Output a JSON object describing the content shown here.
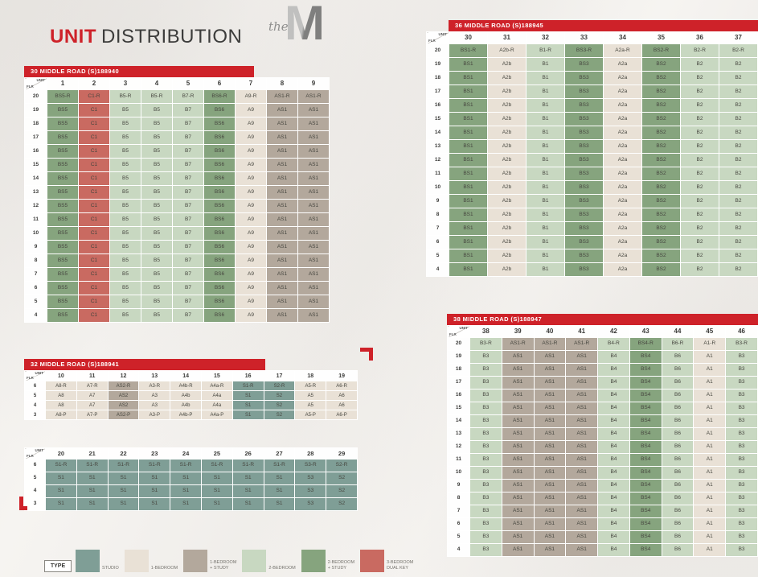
{
  "title": {
    "word1": "UNIT",
    "word2": "DISTRIBUTION"
  },
  "logo": {
    "the": "the",
    "m": "M"
  },
  "colors": {
    "header_red": "#ce2229",
    "studio": "#7f9e96",
    "one_bedroom": "#e9e1d6",
    "one_bedroom_study": "#b3a89c",
    "two_bedroom": "#c8d8c1",
    "two_bedroom_study": "#86a47e",
    "three_bedroom_dual_key": "#c96a61"
  },
  "legend": {
    "type_label": "TYPE",
    "items": [
      {
        "label": "STUDIO",
        "type": "studio",
        "color": "#7f9e96"
      },
      {
        "label": "1-BEDROOM",
        "type": "one_bedroom",
        "color": "#e9e1d6"
      },
      {
        "label": "1-BEDROOM\n+ STUDY",
        "type": "one_bedroom_study",
        "color": "#b3a89c"
      },
      {
        "label": "2-BEDROOM",
        "type": "two_bedroom",
        "color": "#c8d8c1"
      },
      {
        "label": "2-BEDROOM\n+ STUDY",
        "type": "two_bedroom_study",
        "color": "#86a47e"
      },
      {
        "label": "3-BEDROOM\nDUAL KEY",
        "type": "three_bedroom_dual_key",
        "color": "#c96a61"
      }
    ]
  },
  "tables": [
    {
      "title": "30 MIDDLE ROAD (S)188940",
      "corner": {
        "line1": "UNIT",
        "line2": "FLR"
      },
      "columns": [
        "1",
        "2",
        "3",
        "4",
        "5",
        "6",
        "7",
        "8",
        "9"
      ],
      "column_types": [
        "two_bedroom_study",
        "three_bedroom_dual_key",
        "two_bedroom",
        "two_bedroom",
        "two_bedroom",
        "two_bedroom_study",
        "one_bedroom",
        "one_bedroom_study",
        "one_bedroom_study"
      ],
      "rows": [
        {
          "floor": "20",
          "cells": [
            "BS5-R",
            "C1-R",
            "B5-R",
            "B5-R",
            "B7-R",
            "BS6-R",
            "A9-R",
            "AS1-R",
            "AS1-R"
          ]
        },
        {
          "floor": "19",
          "cells": [
            "BS5",
            "C1",
            "B5",
            "B5",
            "B7",
            "BS6",
            "A9",
            "AS1",
            "AS1"
          ]
        },
        {
          "floor": "18",
          "cells": [
            "BS5",
            "C1",
            "B5",
            "B5",
            "B7",
            "BS6",
            "A9",
            "AS1",
            "AS1"
          ]
        },
        {
          "floor": "17",
          "cells": [
            "BS5",
            "C1",
            "B5",
            "B5",
            "B7",
            "BS6",
            "A9",
            "AS1",
            "AS1"
          ]
        },
        {
          "floor": "16",
          "cells": [
            "BS5",
            "C1",
            "B5",
            "B5",
            "B7",
            "BS6",
            "A9",
            "AS1",
            "AS1"
          ]
        },
        {
          "floor": "15",
          "cells": [
            "BS5",
            "C1",
            "B5",
            "B5",
            "B7",
            "BS6",
            "A9",
            "AS1",
            "AS1"
          ]
        },
        {
          "floor": "14",
          "cells": [
            "BS5",
            "C1",
            "B5",
            "B5",
            "B7",
            "BS6",
            "A9",
            "AS1",
            "AS1"
          ]
        },
        {
          "floor": "13",
          "cells": [
            "BS5",
            "C1",
            "B5",
            "B5",
            "B7",
            "BS6",
            "A9",
            "AS1",
            "AS1"
          ]
        },
        {
          "floor": "12",
          "cells": [
            "BS5",
            "C1",
            "B5",
            "B5",
            "B7",
            "BS6",
            "A9",
            "AS1",
            "AS1"
          ]
        },
        {
          "floor": "11",
          "cells": [
            "BS5",
            "C1",
            "B5",
            "B5",
            "B7",
            "BS6",
            "A9",
            "AS1",
            "AS1"
          ]
        },
        {
          "floor": "10",
          "cells": [
            "BS5",
            "C1",
            "B5",
            "B5",
            "B7",
            "BS6",
            "A9",
            "AS1",
            "AS1"
          ]
        },
        {
          "floor": "9",
          "cells": [
            "BS5",
            "C1",
            "B5",
            "B5",
            "B7",
            "BS6",
            "A9",
            "AS1",
            "AS1"
          ]
        },
        {
          "floor": "8",
          "cells": [
            "BS5",
            "C1",
            "B5",
            "B5",
            "B7",
            "BS6",
            "A9",
            "AS1",
            "AS1"
          ]
        },
        {
          "floor": "7",
          "cells": [
            "BS5",
            "C1",
            "B5",
            "B5",
            "B7",
            "BS6",
            "A9",
            "AS1",
            "AS1"
          ]
        },
        {
          "floor": "6",
          "cells": [
            "BS5",
            "C1",
            "B5",
            "B5",
            "B7",
            "BS6",
            "A9",
            "AS1",
            "AS1"
          ]
        },
        {
          "floor": "5",
          "cells": [
            "BS5",
            "C1",
            "B5",
            "B5",
            "B7",
            "BS6",
            "A9",
            "AS1",
            "AS1"
          ]
        },
        {
          "floor": "4",
          "cells": [
            "BS5",
            "C1",
            "B5",
            "B5",
            "B7",
            "BS6",
            "A9",
            "AS1",
            "AS1"
          ]
        }
      ]
    },
    {
      "title": "36 MIDDLE ROAD (S)188945",
      "corner": {
        "line1": "UNIT",
        "line2": "FLR"
      },
      "columns": [
        "30",
        "31",
        "32",
        "33",
        "34",
        "35",
        "36",
        "37"
      ],
      "column_types": [
        "two_bedroom_study",
        "one_bedroom",
        "two_bedroom",
        "two_bedroom_study",
        "one_bedroom",
        "two_bedroom_study",
        "two_bedroom",
        "two_bedroom"
      ],
      "rows": [
        {
          "floor": "20",
          "cells": [
            "BS1-R",
            "A2b-R",
            "B1-R",
            "BS3-R",
            "A2a-R",
            "BS2-R",
            "B2-R",
            "B2-R"
          ]
        },
        {
          "floor": "19",
          "cells": [
            "BS1",
            "A2b",
            "B1",
            "BS3",
            "A2a",
            "BS2",
            "B2",
            "B2"
          ]
        },
        {
          "floor": "18",
          "cells": [
            "BS1",
            "A2b",
            "B1",
            "BS3",
            "A2a",
            "BS2",
            "B2",
            "B2"
          ]
        },
        {
          "floor": "17",
          "cells": [
            "BS1",
            "A2b",
            "B1",
            "BS3",
            "A2a",
            "BS2",
            "B2",
            "B2"
          ]
        },
        {
          "floor": "16",
          "cells": [
            "BS1",
            "A2b",
            "B1",
            "BS3",
            "A2a",
            "BS2",
            "B2",
            "B2"
          ]
        },
        {
          "floor": "15",
          "cells": [
            "BS1",
            "A2b",
            "B1",
            "BS3",
            "A2a",
            "BS2",
            "B2",
            "B2"
          ]
        },
        {
          "floor": "14",
          "cells": [
            "BS1",
            "A2b",
            "B1",
            "BS3",
            "A2a",
            "BS2",
            "B2",
            "B2"
          ]
        },
        {
          "floor": "13",
          "cells": [
            "BS1",
            "A2b",
            "B1",
            "BS3",
            "A2a",
            "BS2",
            "B2",
            "B2"
          ]
        },
        {
          "floor": "12",
          "cells": [
            "BS1",
            "A2b",
            "B1",
            "BS3",
            "A2a",
            "BS2",
            "B2",
            "B2"
          ]
        },
        {
          "floor": "11",
          "cells": [
            "BS1",
            "A2b",
            "B1",
            "BS3",
            "A2a",
            "BS2",
            "B2",
            "B2"
          ]
        },
        {
          "floor": "10",
          "cells": [
            "BS1",
            "A2b",
            "B1",
            "BS3",
            "A2a",
            "BS2",
            "B2",
            "B2"
          ]
        },
        {
          "floor": "9",
          "cells": [
            "BS1",
            "A2b",
            "B1",
            "BS3",
            "A2a",
            "BS2",
            "B2",
            "B2"
          ]
        },
        {
          "floor": "8",
          "cells": [
            "BS1",
            "A2b",
            "B1",
            "BS3",
            "A2a",
            "BS2",
            "B2",
            "B2"
          ]
        },
        {
          "floor": "7",
          "cells": [
            "BS1",
            "A2b",
            "B1",
            "BS3",
            "A2a",
            "BS2",
            "B2",
            "B2"
          ]
        },
        {
          "floor": "6",
          "cells": [
            "BS1",
            "A2b",
            "B1",
            "BS3",
            "A2a",
            "BS2",
            "B2",
            "B2"
          ]
        },
        {
          "floor": "5",
          "cells": [
            "BS1",
            "A2b",
            "B1",
            "BS3",
            "A2a",
            "BS2",
            "B2",
            "B2"
          ]
        },
        {
          "floor": "4",
          "cells": [
            "BS1",
            "A2b",
            "B1",
            "BS3",
            "A2a",
            "BS2",
            "B2",
            "B2"
          ]
        }
      ]
    },
    {
      "title": "32 MIDDLE ROAD (S)188941",
      "corner": {
        "line1": "UNIT",
        "line2": "FLR"
      },
      "columns": [
        "10",
        "11",
        "12",
        "13",
        "14",
        "15",
        "16",
        "17",
        "18",
        "19"
      ],
      "column_types": [
        "one_bedroom",
        "one_bedroom",
        "one_bedroom_study",
        "one_bedroom",
        "one_bedroom",
        "one_bedroom",
        "studio",
        "studio",
        "one_bedroom",
        "one_bedroom"
      ],
      "rows": [
        {
          "floor": "6",
          "cells": [
            "A8-R",
            "A7-R",
            "AS2-R",
            "A3-R",
            "A4b-R",
            "A4a-R",
            "S1-R",
            "S2-R",
            "A5-R",
            "A6-R"
          ]
        },
        {
          "floor": "5",
          "cells": [
            "A8",
            "A7",
            "AS2",
            "A3",
            "A4b",
            "A4a",
            "S1",
            "S2",
            "A5",
            "A6"
          ]
        },
        {
          "floor": "4",
          "cells": [
            "A8",
            "A7",
            "AS2",
            "A3",
            "A4b",
            "A4a",
            "S1",
            "S2",
            "A5",
            "A6"
          ]
        },
        {
          "floor": "3",
          "cells": [
            "A8-P",
            "A7-P",
            "AS2-P",
            "A3-P",
            "A4b-P",
            "A4a-P",
            "S1",
            "S2",
            "A5-P",
            "A6-P"
          ]
        }
      ]
    },
    {
      "title": null,
      "corner": {
        "line1": "UNIT",
        "line2": "FLR"
      },
      "columns": [
        "20",
        "21",
        "22",
        "23",
        "24",
        "25",
        "26",
        "27",
        "28",
        "29"
      ],
      "column_types": [
        "studio",
        "studio",
        "studio",
        "studio",
        "studio",
        "studio",
        "studio",
        "studio",
        "studio",
        "studio"
      ],
      "rows": [
        {
          "floor": "6",
          "cells": [
            "S1-R",
            "S1-R",
            "S1-R",
            "S1-R",
            "S1-R",
            "S1-R",
            "S1-R",
            "S1-R",
            "S3-R",
            "S2-R"
          ]
        },
        {
          "floor": "5",
          "cells": [
            "S1",
            "S1",
            "S1",
            "S1",
            "S1",
            "S1",
            "S1",
            "S1",
            "S3",
            "S2"
          ]
        },
        {
          "floor": "4",
          "cells": [
            "S1",
            "S1",
            "S1",
            "S1",
            "S1",
            "S1",
            "S1",
            "S1",
            "S3",
            "S2"
          ]
        },
        {
          "floor": "3",
          "cells": [
            "S1",
            "S1",
            "S1",
            "S1",
            "S1",
            "S1",
            "S1",
            "S1",
            "S3",
            "S2"
          ]
        }
      ]
    },
    {
      "title": "38 MIDDLE ROAD (S)188947",
      "corner": {
        "line1": "UNIT",
        "line2": "FLR"
      },
      "columns": [
        "38",
        "39",
        "40",
        "41",
        "42",
        "43",
        "44",
        "45",
        "46"
      ],
      "column_types": [
        "two_bedroom",
        "one_bedroom_study",
        "one_bedroom_study",
        "one_bedroom_study",
        "two_bedroom",
        "two_bedroom_study",
        "two_bedroom",
        "one_bedroom",
        "two_bedroom"
      ],
      "rows": [
        {
          "floor": "20",
          "cells": [
            "B3-R",
            "AS1-R",
            "AS1-R",
            "AS1-R",
            "B4-R",
            "BS4-R",
            "B6-R",
            "A1-R",
            "B3-R"
          ]
        },
        {
          "floor": "19",
          "cells": [
            "B3",
            "AS1",
            "AS1",
            "AS1",
            "B4",
            "BS4",
            "B6",
            "A1",
            "B3"
          ]
        },
        {
          "floor": "18",
          "cells": [
            "B3",
            "AS1",
            "AS1",
            "AS1",
            "B4",
            "BS4",
            "B6",
            "A1",
            "B3"
          ]
        },
        {
          "floor": "17",
          "cells": [
            "B3",
            "AS1",
            "AS1",
            "AS1",
            "B4",
            "BS4",
            "B6",
            "A1",
            "B3"
          ]
        },
        {
          "floor": "16",
          "cells": [
            "B3",
            "AS1",
            "AS1",
            "AS1",
            "B4",
            "BS4",
            "B6",
            "A1",
            "B3"
          ]
        },
        {
          "floor": "15",
          "cells": [
            "B3",
            "AS1",
            "AS1",
            "AS1",
            "B4",
            "BS4",
            "B6",
            "A1",
            "B3"
          ]
        },
        {
          "floor": "14",
          "cells": [
            "B3",
            "AS1",
            "AS1",
            "AS1",
            "B4",
            "BS4",
            "B6",
            "A1",
            "B3"
          ]
        },
        {
          "floor": "13",
          "cells": [
            "B3",
            "AS1",
            "AS1",
            "AS1",
            "B4",
            "BS4",
            "B6",
            "A1",
            "B3"
          ]
        },
        {
          "floor": "12",
          "cells": [
            "B3",
            "AS1",
            "AS1",
            "AS1",
            "B4",
            "BS4",
            "B6",
            "A1",
            "B3"
          ]
        },
        {
          "floor": "11",
          "cells": [
            "B3",
            "AS1",
            "AS1",
            "AS1",
            "B4",
            "BS4",
            "B6",
            "A1",
            "B3"
          ]
        },
        {
          "floor": "10",
          "cells": [
            "B3",
            "AS1",
            "AS1",
            "AS1",
            "B4",
            "BS4",
            "B6",
            "A1",
            "B3"
          ]
        },
        {
          "floor": "9",
          "cells": [
            "B3",
            "AS1",
            "AS1",
            "AS1",
            "B4",
            "BS4",
            "B6",
            "A1",
            "B3"
          ]
        },
        {
          "floor": "8",
          "cells": [
            "B3",
            "AS1",
            "AS1",
            "AS1",
            "B4",
            "BS4",
            "B6",
            "A1",
            "B3"
          ]
        },
        {
          "floor": "7",
          "cells": [
            "B3",
            "AS1",
            "AS1",
            "AS1",
            "B4",
            "BS4",
            "B6",
            "A1",
            "B3"
          ]
        },
        {
          "floor": "6",
          "cells": [
            "B3",
            "AS1",
            "AS1",
            "AS1",
            "B4",
            "BS4",
            "B6",
            "A1",
            "B3"
          ]
        },
        {
          "floor": "5",
          "cells": [
            "B3",
            "AS1",
            "AS1",
            "AS1",
            "B4",
            "BS4",
            "B6",
            "A1",
            "B3"
          ]
        },
        {
          "floor": "4",
          "cells": [
            "B3",
            "AS1",
            "AS1",
            "AS1",
            "B4",
            "BS4",
            "B6",
            "A1",
            "B3"
          ]
        }
      ]
    }
  ]
}
